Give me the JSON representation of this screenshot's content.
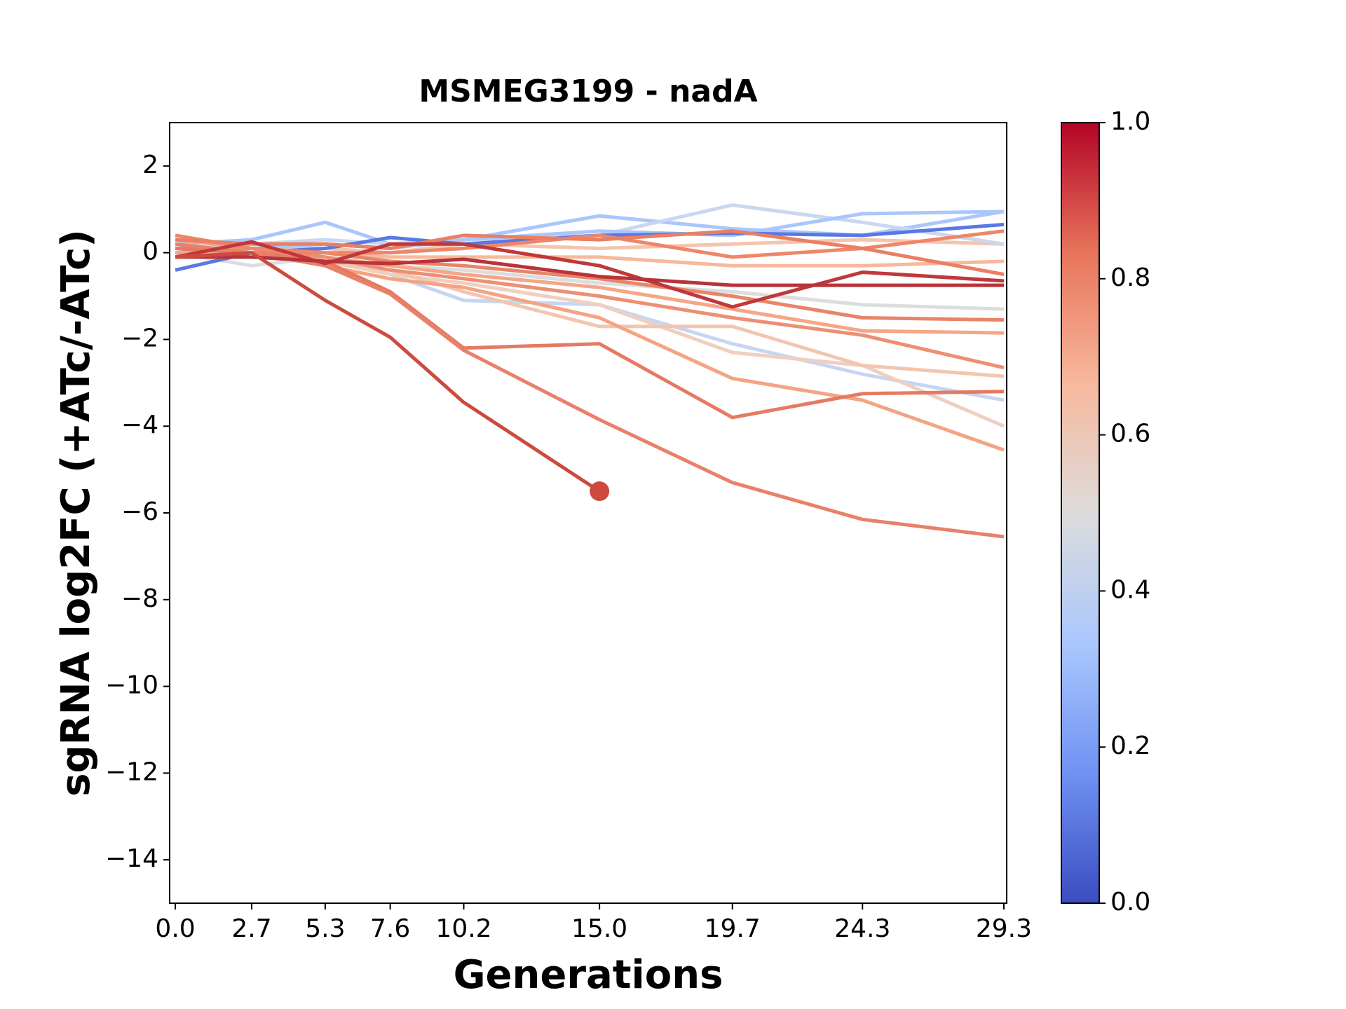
{
  "chart_data": {
    "type": "line",
    "title": "MSMEG3199 - nadA",
    "x_label": "Generations",
    "y_label": "sgRNA log2FC (+ATc/-ATc)",
    "x": [
      0.0,
      2.7,
      5.3,
      7.6,
      10.2,
      15.0,
      19.7,
      24.3,
      29.3
    ],
    "xlim": [
      -0.2,
      29.4
    ],
    "xticks": [
      {
        "value": 0,
        "label": "0.0"
      },
      2.7,
      5.3,
      7.6,
      10.2,
      {
        "value": 15,
        "label": "15.0"
      },
      19.7,
      24.3,
      29.3
    ],
    "ylim": [
      -15,
      3
    ],
    "yticks": [
      {
        "value": -14,
        "label": "−14"
      },
      {
        "value": -12,
        "label": "−12"
      },
      {
        "value": -10,
        "label": "−10"
      },
      {
        "value": -8,
        "label": "−8"
      },
      {
        "value": -6,
        "label": "−6"
      },
      {
        "value": -4,
        "label": "−4"
      },
      {
        "value": -2,
        "label": "−2"
      },
      0,
      2
    ],
    "grid": false,
    "series": [
      {
        "color": "#dcdddd",
        "values": [
          0,
          -0.3,
          -0.1,
          -0.3,
          -0.4,
          -0.7,
          -0.9,
          -1.2,
          -1.3
        ]
      },
      {
        "color": "#f7b89c",
        "values": [
          0.1,
          0.1,
          0,
          -0.1,
          -0.1,
          -0.1,
          -0.3,
          -0.3,
          -0.2
        ]
      },
      {
        "color": "#f4c4ad",
        "values": [
          0,
          0.1,
          0.1,
          0,
          0.2,
          0.1,
          0.2,
          0.3,
          0.2
        ]
      },
      {
        "color": "#a9c6fd",
        "values": [
          0.2,
          0.3,
          0.7,
          0.2,
          0.3,
          0.85,
          0.55,
          0.4,
          0.95
        ]
      },
      {
        "color": "#c9d7f0",
        "values": [
          0.1,
          0.2,
          0.3,
          0.2,
          0.3,
          0.4,
          1.1,
          0.7,
          0.2
        ]
      },
      {
        "color": "#aac7fd",
        "values": [
          0,
          0.1,
          0.2,
          0.1,
          0.3,
          0.5,
          0.4,
          0.9,
          0.95
        ]
      },
      {
        "color": "#5a78e4",
        "values": [
          -0.4,
          0,
          0.1,
          0.35,
          0.2,
          0.4,
          0.45,
          0.4,
          0.65
        ]
      },
      {
        "color": "#c5d6f2",
        "values": [
          0.1,
          0,
          -0.1,
          -0.5,
          -1.1,
          -1.2,
          -2.1,
          -2.8,
          -3.4
        ]
      },
      {
        "color": "#efcfbf",
        "values": [
          0.2,
          0,
          -0.2,
          -0.5,
          -0.7,
          -1.2,
          -2.3,
          -2.6,
          -4.0
        ]
      },
      {
        "color": "#f2c6ae",
        "values": [
          0.2,
          0,
          -0.2,
          -0.4,
          -0.9,
          -1.7,
          -1.7,
          -2.6,
          -2.85
        ]
      },
      {
        "color": "#f4a383",
        "values": [
          0.3,
          0.1,
          -0.3,
          -0.6,
          -0.8,
          -1.5,
          -2.9,
          -3.4,
          -4.55
        ]
      },
      {
        "color": "#f5a688",
        "values": [
          0,
          0,
          -0.1,
          -0.3,
          -0.5,
          -0.8,
          -1.3,
          -1.8,
          -1.85
        ]
      },
      {
        "color": "#ec8f73",
        "values": [
          0.1,
          0.1,
          -0.1,
          -0.4,
          -0.6,
          -1.0,
          -1.5,
          -1.9,
          -2.65
        ]
      },
      {
        "color": "#e98468",
        "values": [
          0.1,
          0,
          0,
          -0.2,
          -0.3,
          -0.6,
          -1.0,
          -1.5,
          -1.55
        ]
      },
      {
        "color": "#ee8669",
        "values": [
          0.4,
          0.1,
          0,
          0,
          0.1,
          0.4,
          -0.1,
          0.1,
          0.5
        ]
      },
      {
        "color": "#e97f64",
        "values": [
          0.3,
          0.2,
          0.2,
          0.1,
          0.4,
          0.3,
          0.5,
          0.1,
          -0.5
        ]
      },
      {
        "color": "#e57a62",
        "values": [
          0.1,
          0,
          -0.2,
          -0.9,
          -2.2,
          -2.1,
          -3.8,
          -3.25,
          -3.2
        ]
      },
      {
        "color": "#e8806a",
        "values": [
          0.2,
          0,
          -0.3,
          -0.95,
          -2.25,
          -3.85,
          -5.3,
          -6.15,
          -6.55
        ]
      },
      {
        "color": "#c0383b",
        "values": [
          -0.1,
          0.25,
          -0.25,
          0.2,
          0.2,
          -0.3,
          -1.25,
          -0.45,
          -0.65
        ]
      },
      {
        "color": "#b8333a",
        "values": [
          -0.1,
          -0.1,
          -0.2,
          -0.25,
          -0.15,
          -0.55,
          -0.75,
          -0.75,
          -0.75
        ]
      },
      {
        "color": "#cd4a3f",
        "values": [
          -0.1,
          0,
          -1.1,
          -1.95,
          -3.45,
          -5.5,
          null,
          null,
          null
        ]
      }
    ],
    "colorbar": {
      "lim": [
        0,
        1
      ],
      "ticks": [
        {
          "value": 0,
          "label": "0.0"
        },
        0.2,
        0.4,
        0.6,
        0.8,
        {
          "value": 1,
          "label": "1.0"
        }
      ],
      "colors": [
        "#3b4cc0",
        "#6f92f3",
        "#aac7fd",
        "#dddcdc",
        "#f7b89c",
        "#e7745b",
        "#b40426"
      ]
    }
  }
}
